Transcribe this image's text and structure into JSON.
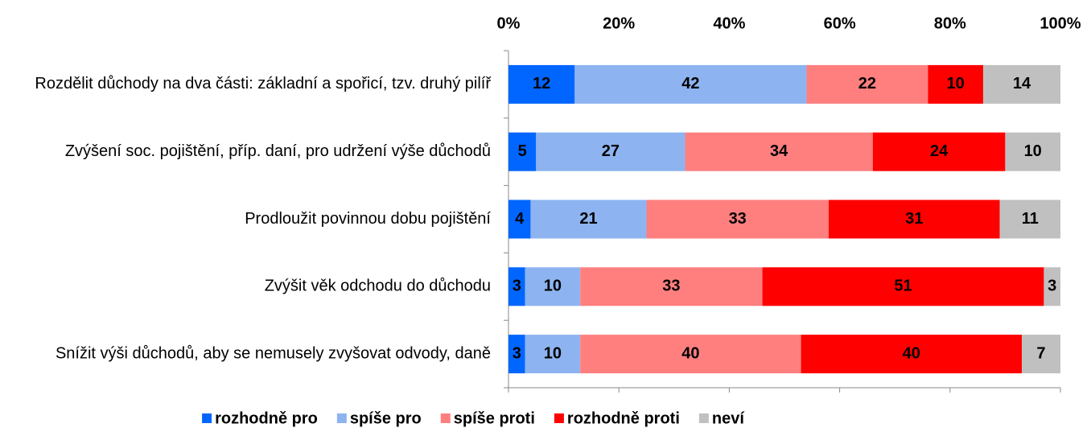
{
  "chart_data": {
    "type": "stacked-barh",
    "categories": [
      "Rozdělit důchody na dva části: základní a spořicí, tzv. druhý pilíř",
      "Zvýšení soc. pojištění, příp. daní, pro udržení výše důchodů",
      "Prodloužit povinnou dobu pojištění",
      "Zvýšit věk odchodu do důchodu",
      "Snížit výši důchodů, aby se nemusely zvyšovat odvody, daně"
    ],
    "series": [
      {
        "name": "rozhodně pro",
        "color": "#0066ff",
        "values": [
          12,
          5,
          4,
          3,
          3
        ]
      },
      {
        "name": "spíše pro",
        "color": "#8db4f0",
        "values": [
          42,
          27,
          21,
          10,
          10
        ]
      },
      {
        "name": "spíše proti",
        "color": "#ff7f7f",
        "values": [
          22,
          34,
          33,
          33,
          40
        ]
      },
      {
        "name": "rozhodně proti",
        "color": "#ff0000",
        "values": [
          10,
          24,
          31,
          51,
          40
        ]
      },
      {
        "name": "neví",
        "color": "#c0c0c0",
        "values": [
          14,
          10,
          11,
          3,
          7
        ]
      }
    ],
    "xlim": [
      0,
      100
    ],
    "xticks": [
      {
        "value": 0,
        "label": "0%"
      },
      {
        "value": 20,
        "label": "20%"
      },
      {
        "value": 40,
        "label": "40%"
      },
      {
        "value": 60,
        "label": "60%"
      },
      {
        "value": 80,
        "label": "80%"
      },
      {
        "value": 100,
        "label": "100%"
      }
    ],
    "legend": "bottom"
  }
}
